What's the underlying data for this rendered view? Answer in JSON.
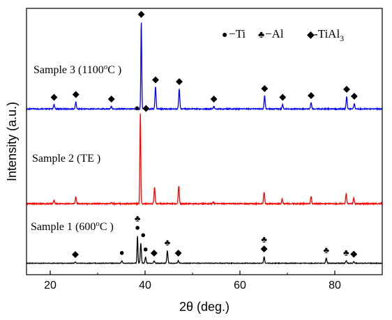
{
  "chart_data": {
    "type": "line",
    "xlabel": "2θ (deg.)",
    "ylabel": "Intensity (a.u.)",
    "xlim": [
      15,
      90
    ],
    "x_ticks": [
      20,
      40,
      60,
      80
    ],
    "grid": false,
    "legend": {
      "placement": "top-right",
      "entries": [
        {
          "symbol": "●",
          "label": "−Ti"
        },
        {
          "symbol": "♣",
          "label": "−Al"
        },
        {
          "symbol": "◆",
          "label": "-TiAl",
          "subscript": "3"
        }
      ]
    },
    "series": [
      {
        "name": "Sample 3 (1100",
        "label_suffix": "C )",
        "color": "#0000ff",
        "baseline": 0.0,
        "peaks": [
          {
            "x": 20.8,
            "h": 0.05
          },
          {
            "x": 25.4,
            "h": 0.08
          },
          {
            "x": 32.9,
            "h": 0.03
          },
          {
            "x": 39.2,
            "h": 1.0
          },
          {
            "x": 42.2,
            "h": 0.25
          },
          {
            "x": 47.2,
            "h": 0.23
          },
          {
            "x": 54.5,
            "h": 0.03
          },
          {
            "x": 65.2,
            "h": 0.15
          },
          {
            "x": 69.0,
            "h": 0.05
          },
          {
            "x": 75.0,
            "h": 0.07
          },
          {
            "x": 82.5,
            "h": 0.14
          },
          {
            "x": 84.1,
            "h": 0.06
          }
        ],
        "markers": [
          {
            "x": 20.8,
            "symbol": "◆"
          },
          {
            "x": 25.4,
            "symbol": "◆"
          },
          {
            "x": 32.9,
            "symbol": "◆"
          },
          {
            "x": 39.2,
            "symbol": "◆"
          },
          {
            "x": 42.2,
            "symbol": "◆"
          },
          {
            "x": 47.2,
            "symbol": "◆"
          },
          {
            "x": 54.5,
            "symbol": "◆"
          },
          {
            "x": 65.2,
            "symbol": "◆"
          },
          {
            "x": 69.0,
            "symbol": "◆"
          },
          {
            "x": 75.0,
            "symbol": "◆"
          },
          {
            "x": 82.5,
            "symbol": "◆"
          },
          {
            "x": 84.1,
            "symbol": "◆"
          }
        ]
      },
      {
        "name": "Sample 2 (TE )",
        "color": "#ff0000",
        "peaks": [
          {
            "x": 20.8,
            "h": 0.04
          },
          {
            "x": 25.4,
            "h": 0.08
          },
          {
            "x": 32.9,
            "h": 0.02
          },
          {
            "x": 39.0,
            "h": 1.0
          },
          {
            "x": 42.0,
            "h": 0.18
          },
          {
            "x": 47.1,
            "h": 0.2
          },
          {
            "x": 54.4,
            "h": 0.02
          },
          {
            "x": 65.1,
            "h": 0.13
          },
          {
            "x": 68.9,
            "h": 0.05
          },
          {
            "x": 75.0,
            "h": 0.08
          },
          {
            "x": 82.4,
            "h": 0.11
          },
          {
            "x": 84.0,
            "h": 0.06
          }
        ],
        "markers": [
          {
            "x": 38.3,
            "symbol": "●"
          },
          {
            "x": 40.2,
            "symbol": "◆"
          }
        ]
      },
      {
        "name": "Sample 1 (600",
        "label_suffix": "C )",
        "color": "#000000",
        "peaks": [
          {
            "x": 25.3,
            "h": 0.02
          },
          {
            "x": 35.1,
            "h": 0.05
          },
          {
            "x": 38.4,
            "h": 0.55
          },
          {
            "x": 39.1,
            "h": 0.4
          },
          {
            "x": 40.1,
            "h": 0.12
          },
          {
            "x": 41.9,
            "h": 0.05
          },
          {
            "x": 44.7,
            "h": 0.25
          },
          {
            "x": 47.0,
            "h": 0.05
          },
          {
            "x": 65.1,
            "h": 0.13
          },
          {
            "x": 78.2,
            "h": 0.1
          },
          {
            "x": 82.4,
            "h": 0.05
          },
          {
            "x": 84.0,
            "h": 0.03
          }
        ],
        "markers": [
          {
            "x": 25.3,
            "symbol": "◆",
            "stack": 0
          },
          {
            "x": 35.1,
            "symbol": "●",
            "stack": 0
          },
          {
            "x": 38.4,
            "symbol": "♣",
            "stack": 1
          },
          {
            "x": 38.4,
            "symbol": "●",
            "stack": 0
          },
          {
            "x": 39.6,
            "symbol": "●",
            "stack": 0
          },
          {
            "x": 40.1,
            "symbol": "●",
            "stack": 0
          },
          {
            "x": 41.9,
            "symbol": "◆",
            "stack": 0
          },
          {
            "x": 44.7,
            "symbol": "♣",
            "stack": 0
          },
          {
            "x": 47.0,
            "symbol": "◆",
            "stack": 0
          },
          {
            "x": 65.1,
            "symbol": "♣",
            "stack": 1
          },
          {
            "x": 65.1,
            "symbol": "◆",
            "stack": 0
          },
          {
            "x": 78.2,
            "symbol": "♣",
            "stack": 0
          },
          {
            "x": 82.4,
            "symbol": "♣",
            "stack": 0
          },
          {
            "x": 84.0,
            "symbol": "◆",
            "stack": 0
          }
        ]
      }
    ]
  }
}
